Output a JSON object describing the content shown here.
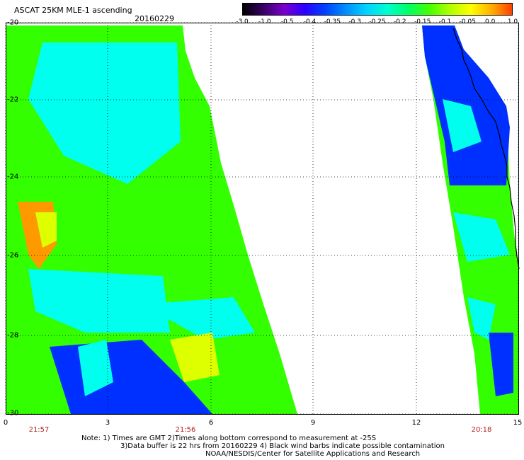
{
  "title": "ASCAT 25KM MLE-1 ascending",
  "date": "20160229",
  "colorbar": {
    "labels": [
      "-3.0",
      "-1.0",
      "-0.5",
      "-0.4",
      "-0.35",
      "-0.3",
      "-0.25",
      "-0.2",
      "-0.15",
      "-0.1",
      "-0.05",
      "0.0",
      "1.0"
    ],
    "colors": [
      "#000000",
      "#3a0066",
      "#7a00cc",
      "#2a00ff",
      "#0044ff",
      "#0090ff",
      "#00d4ff",
      "#00ffcc",
      "#00ff66",
      "#44ff00",
      "#b0ff00",
      "#ffff00",
      "#ffb000",
      "#ff4000"
    ]
  },
  "axes": {
    "y_labels": [
      "-20",
      "-22",
      "-24",
      "-26",
      "-28",
      "-30"
    ],
    "x_labels": [
      "0",
      "3",
      "6",
      "9",
      "12",
      "15"
    ],
    "time_labels": [
      "21:57",
      "21:56",
      "20:18"
    ]
  },
  "notes": {
    "line1": "Note: 1) Times are GMT 2)Times along bottom correspond to measurement at -25S",
    "line2": "3)Data buffer is 22 hrs from 20160229 4) Black wind barbs indicate possible contamination",
    "line3": "NOAA/NESDIS/Center for Satellite Applications and Research"
  },
  "colors": {
    "swath_green": "#33ff00",
    "swath_cyan": "#00ffee",
    "swath_blue": "#0030ff",
    "swath_orange": "#ff9900",
    "swath_yellow": "#ddff00",
    "coast": "#000000"
  }
}
